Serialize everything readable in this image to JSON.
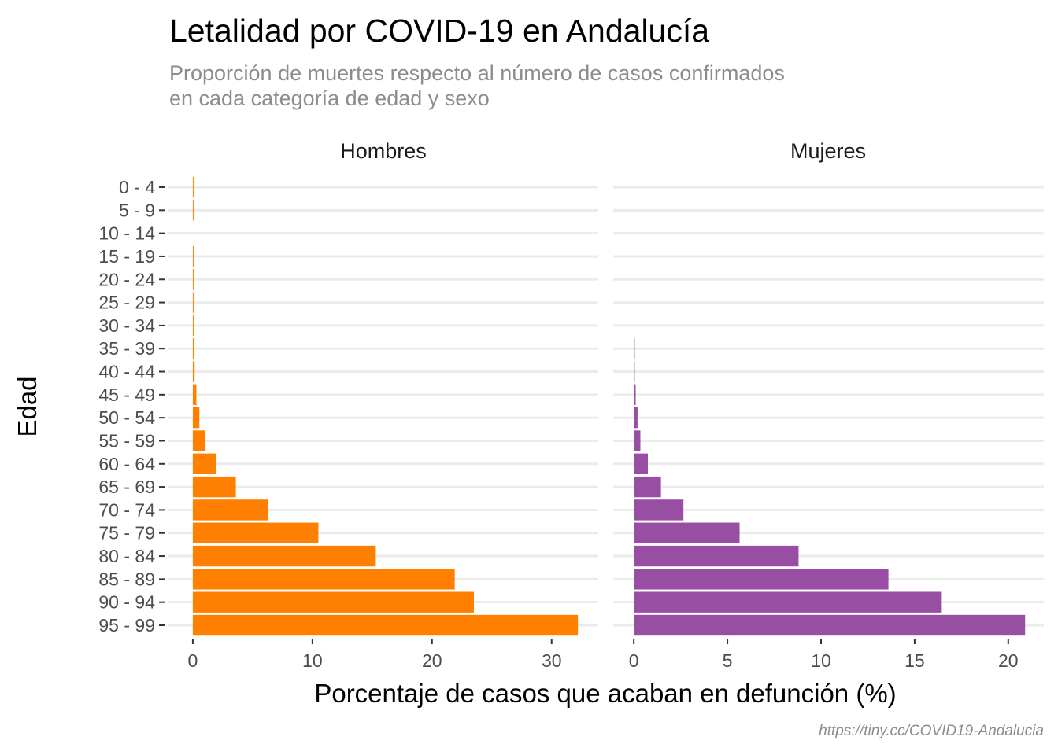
{
  "title": "Letalidad por COVID-19 en Andalucía",
  "subtitle_lines": [
    "Proporción de muertes respecto al número de casos confirmados",
    "en cada categoría de edad y sexo"
  ],
  "caption": "https://tiny.cc/COVID19-Andalucia",
  "chart_data": {
    "type": "bar",
    "orientation": "horizontal",
    "ylabel": "Edad",
    "xlabel": "Porcentaje de casos que acaban en defunción (%)",
    "categories": [
      "0 - 4",
      "5 - 9",
      "10 - 14",
      "15 - 19",
      "20 - 24",
      "25 - 29",
      "30 - 34",
      "35 - 39",
      "40 - 44",
      "45 - 49",
      "50 - 54",
      "55 - 59",
      "60 - 64",
      "65 - 69",
      "70 - 74",
      "75 - 79",
      "80 - 84",
      "85 - 89",
      "90 - 94",
      "95 - 99"
    ],
    "grid": true,
    "legend": "none",
    "panels": [
      {
        "name": "Hombres",
        "color": "#ff7f00",
        "xlim": [
          -2.1,
          33.9
        ],
        "xticks": [
          0,
          10,
          20,
          30
        ],
        "values": [
          0.05,
          0.05,
          0,
          0.05,
          0.05,
          0.05,
          0.05,
          0.1,
          0.15,
          0.3,
          0.55,
          1.0,
          1.95,
          3.6,
          6.3,
          10.5,
          15.3,
          21.9,
          23.5,
          32.2
        ]
      },
      {
        "name": "Mujeres",
        "color": "#984ea3",
        "xlim": [
          -1.1,
          21.9
        ],
        "xticks": [
          0,
          5,
          10,
          15,
          20
        ],
        "values": [
          0,
          0,
          0,
          0,
          0,
          0,
          0,
          0.05,
          0.05,
          0.1,
          0.2,
          0.35,
          0.75,
          1.45,
          2.65,
          5.65,
          8.8,
          13.6,
          16.45,
          20.9
        ]
      }
    ]
  }
}
